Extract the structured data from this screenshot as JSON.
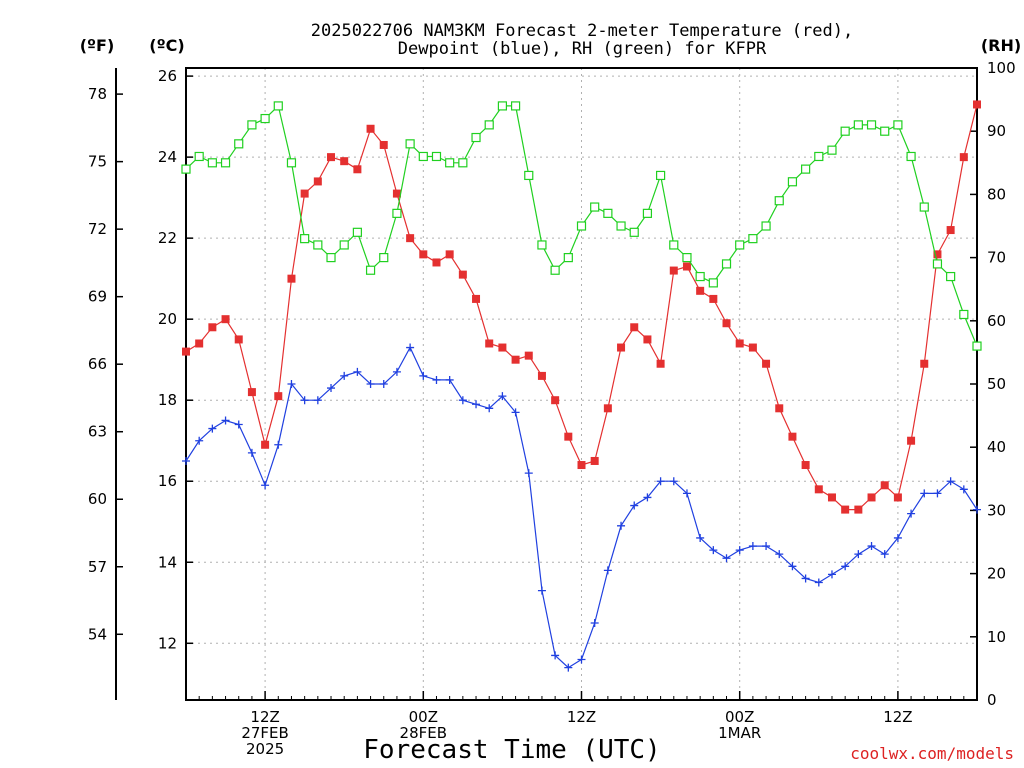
{
  "chart_data": {
    "type": "line",
    "title_line1": "2025022706 NAM3KM Forecast 2-meter Temperature (red),",
    "title_line2": "Dewpoint (blue), RH (green) for KFPR",
    "xlabel": "Forecast Time (UTC)",
    "credit": "coolwx.com/models",
    "unit_left_f": "(ºF)",
    "unit_left_c": "(ºC)",
    "unit_right": "(RH)",
    "x_hours_since_start": [
      0,
      1,
      2,
      3,
      4,
      5,
      6,
      7,
      8,
      9,
      10,
      11,
      12,
      13,
      14,
      15,
      16,
      17,
      18,
      19,
      20,
      21,
      22,
      23,
      24,
      25,
      26,
      27,
      28,
      29,
      30,
      31,
      32,
      33,
      34,
      35,
      36,
      37,
      38,
      39,
      40,
      41,
      42,
      43,
      44,
      45,
      46,
      47,
      48,
      49,
      50,
      51,
      52,
      53,
      54,
      55,
      56,
      57,
      58,
      59,
      60
    ],
    "x_ticks": [
      {
        "hour": 6,
        "labels": [
          "12Z",
          "27FEB",
          "2025"
        ]
      },
      {
        "hour": 18,
        "labels": [
          "00Z",
          "28FEB"
        ]
      },
      {
        "hour": 30,
        "labels": [
          "12Z"
        ]
      },
      {
        "hour": 42,
        "labels": [
          "00Z",
          "1MAR"
        ]
      },
      {
        "hour": 54,
        "labels": [
          "12Z"
        ]
      }
    ],
    "xlim": [
      0,
      60
    ],
    "ylim_c": [
      10.6,
      26.2
    ],
    "yticks_c": [
      "12",
      "14",
      "16",
      "18",
      "20",
      "22",
      "24",
      "26"
    ],
    "yticks_f": [
      "54",
      "57",
      "60",
      "63",
      "66",
      "69",
      "72",
      "75",
      "78"
    ],
    "ylim_rh": [
      0,
      100
    ],
    "yticks_rh": [
      "0",
      "10",
      "20",
      "30",
      "40",
      "50",
      "60",
      "70",
      "80",
      "90",
      "100"
    ],
    "grid": true,
    "series": [
      {
        "name": "Temperature",
        "axis": "c",
        "color": "#e43030",
        "marker": "filled-square",
        "values": [
          19.2,
          19.4,
          19.8,
          20.0,
          19.5,
          18.2,
          16.9,
          18.1,
          21.0,
          23.1,
          23.4,
          24.0,
          23.9,
          23.7,
          24.7,
          24.3,
          23.1,
          22.0,
          21.6,
          21.4,
          21.6,
          21.1,
          20.5,
          19.4,
          19.3,
          19.0,
          19.1,
          18.6,
          18.0,
          17.1,
          16.4,
          16.5,
          17.8,
          19.3,
          19.8,
          19.5,
          18.9,
          21.2,
          21.3,
          20.7,
          20.5,
          19.9,
          19.4,
          19.3,
          18.9,
          17.8,
          17.1,
          16.4,
          15.8,
          15.6,
          15.3,
          15.3,
          15.6,
          15.9,
          15.6,
          17.0,
          18.9,
          21.6,
          22.2,
          24.0,
          25.3
        ]
      },
      {
        "name": "Dewpoint",
        "axis": "c",
        "color": "#2040e0",
        "marker": "plus",
        "values": [
          16.5,
          17.0,
          17.3,
          17.5,
          17.4,
          16.7,
          15.9,
          16.9,
          18.4,
          18.0,
          18.0,
          18.3,
          18.6,
          18.7,
          18.4,
          18.4,
          18.7,
          19.3,
          18.6,
          18.5,
          18.5,
          18.0,
          17.9,
          17.8,
          18.1,
          17.7,
          16.2,
          13.3,
          11.7,
          11.4,
          11.6,
          12.5,
          13.8,
          14.9,
          15.4,
          15.6,
          16.0,
          16.0,
          15.7,
          14.6,
          14.3,
          14.1,
          14.3,
          14.4,
          14.4,
          14.2,
          13.9,
          13.6,
          13.5,
          13.7,
          13.9,
          14.2,
          14.4,
          14.2,
          14.6,
          15.2,
          15.7,
          15.7,
          16.0,
          15.8,
          15.3
        ]
      },
      {
        "name": "RH",
        "axis": "rh",
        "color": "#20d020",
        "marker": "open-square",
        "values": [
          84,
          86,
          85,
          85,
          88,
          91,
          92,
          94,
          85,
          73,
          72,
          70,
          72,
          74,
          68,
          70,
          77,
          88,
          86,
          86,
          85,
          85,
          89,
          91,
          94,
          94,
          83,
          72,
          68,
          70,
          75,
          78,
          77,
          75,
          74,
          77,
          83,
          72,
          70,
          67,
          66,
          69,
          72,
          73,
          75,
          79,
          82,
          84,
          86,
          87,
          90,
          91,
          91,
          90,
          91,
          86,
          78,
          69,
          67,
          61,
          56
        ]
      }
    ]
  }
}
